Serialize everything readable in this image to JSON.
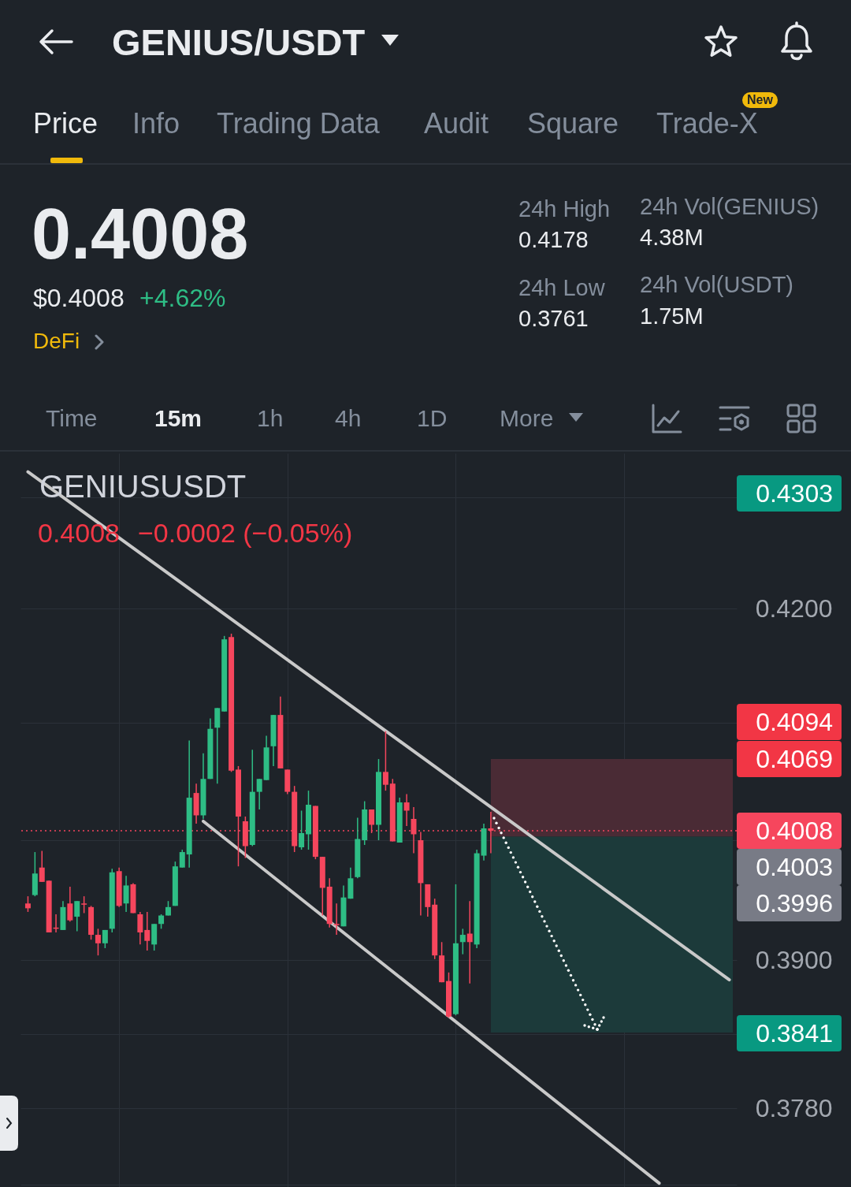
{
  "chart_data": {
    "type": "candlestick",
    "title": "GENIUS/USDT",
    "annotations": [
      "Price",
      "Info",
      "Trading Data",
      "Audit",
      "Square",
      "Trade-X",
      "New",
      "0.4008",
      "$0.4008",
      "+4.62%",
      "DeFi",
      "24h High",
      "0.4178",
      "24h Low",
      "0.3761",
      "24h Vol(GENIUS)",
      "4.38M",
      "24h Vol(USDT)",
      "1.75M",
      "Time",
      "15m",
      "1h",
      "4h",
      "1D",
      "More",
      "GENIUSUSDT",
      "0.4008",
      "−0.0002 (−0.05%)",
      "0.4303",
      "0.4094",
      "0.4069",
      "0.4003",
      "0.3996",
      "0.3841"
    ],
    "categories": [
      null,
      null,
      null,
      null,
      null,
      null,
      null,
      null,
      null,
      null,
      null,
      null,
      null,
      null,
      null,
      null,
      null,
      null,
      null,
      null,
      null,
      null,
      null,
      null,
      null,
      null,
      null,
      null,
      null,
      null,
      null,
      null,
      null,
      null,
      null,
      null,
      null,
      null,
      null,
      null,
      null,
      null,
      null,
      null,
      null,
      null,
      null,
      null,
      null,
      null,
      null,
      null,
      null,
      null,
      null,
      null,
      null,
      null,
      null,
      null,
      null,
      null,
      null,
      null,
      null,
      null,
      null,
      null,
      null,
      null,
      null,
      null,
      null,
      null,
      null,
      null,
      null,
      null,
      null,
      null,
      null,
      null,
      null,
      null,
      null,
      null,
      null,
      null,
      null,
      null,
      null,
      null,
      null,
      null,
      null,
      null,
      null,
      null,
      null,
      null,
      null
    ],
    "ohlc": [
      [
        0.3947,
        0.3953,
        0.394,
        0.3943
      ],
      [
        0.3954,
        0.399,
        0.3953,
        0.3972
      ],
      [
        0.3977,
        0.3991,
        0.3965,
        0.3965
      ],
      [
        0.3966,
        0.3966,
        0.3923,
        0.3923
      ],
      [
        0.3927,
        0.3938,
        0.3923,
        0.3926
      ],
      [
        0.3925,
        0.3949,
        0.3925,
        0.3944
      ],
      [
        0.3947,
        0.3961,
        0.3932,
        0.3933
      ],
      [
        0.3936,
        0.3949,
        0.3924,
        0.3949
      ],
      [
        0.3947,
        0.3953,
        0.3939,
        0.3946
      ],
      [
        0.3944,
        0.3945,
        0.3917,
        0.3921
      ],
      [
        0.3921,
        0.3926,
        0.3904,
        0.3914
      ],
      [
        0.3914,
        0.3925,
        0.391,
        0.3925
      ],
      [
        0.3926,
        0.3976,
        0.3923,
        0.3973
      ],
      [
        0.3974,
        0.3977,
        0.3944,
        0.3945
      ],
      [
        0.3947,
        0.397,
        0.394,
        0.3962
      ],
      [
        0.3963,
        0.3964,
        0.3939,
        0.3939
      ],
      [
        0.3938,
        0.394,
        0.3913,
        0.3923
      ],
      [
        0.3925,
        0.394,
        0.3908,
        0.3916
      ],
      [
        0.3913,
        0.393,
        0.3908,
        0.393
      ],
      [
        0.393,
        0.3938,
        0.3926,
        0.3937
      ],
      [
        0.3937,
        0.3949,
        0.3937,
        0.3944
      ],
      [
        0.3945,
        0.3982,
        0.3945,
        0.3978
      ],
      [
        0.3977,
        0.3992,
        0.3977,
        0.399
      ],
      [
        0.3988,
        0.4085,
        0.3977,
        0.4036
      ],
      [
        0.404,
        0.4048,
        0.4014,
        0.4021
      ],
      [
        0.4021,
        0.4074,
        0.4018,
        0.4052
      ],
      [
        0.4052,
        0.4104,
        0.4052,
        0.4095
      ],
      [
        0.4096,
        0.4113,
        0.4048,
        0.4113
      ],
      [
        0.411,
        0.4176,
        0.411,
        0.4173
      ],
      [
        0.4175,
        0.4178,
        0.4058,
        0.4059
      ],
      [
        0.406,
        0.4063,
        0.3978,
        0.402
      ],
      [
        0.4016,
        0.402,
        0.3985,
        0.3995
      ],
      [
        0.3996,
        0.4077,
        0.3995,
        0.4041
      ],
      [
        0.4041,
        0.4052,
        0.4026,
        0.4052
      ],
      [
        0.4051,
        0.4089,
        0.4051,
        0.4079
      ],
      [
        0.408,
        0.4107,
        0.4063,
        0.4107
      ],
      [
        0.4107,
        0.4123,
        0.4061,
        0.4061
      ],
      [
        0.406,
        0.406,
        0.4039,
        0.4041
      ],
      [
        0.4041,
        0.4046,
        0.399,
        0.3995
      ],
      [
        0.3994,
        0.4025,
        0.3992,
        0.4006
      ],
      [
        0.4005,
        0.4042,
        0.3992,
        0.403
      ],
      [
        0.4029,
        0.4029,
        0.3984,
        0.3986
      ],
      [
        0.3986,
        0.3986,
        0.3937,
        0.396
      ],
      [
        0.3961,
        0.3968,
        0.3927,
        0.393
      ],
      [
        0.393,
        0.3947,
        0.3921,
        0.3929
      ],
      [
        0.3928,
        0.3962,
        0.3928,
        0.3952
      ],
      [
        0.3951,
        0.3977,
        0.3951,
        0.3968
      ],
      [
        0.3969,
        0.4019,
        0.3968,
        0.4001
      ],
      [
        0.4,
        0.4033,
        0.3996,
        0.4026
      ],
      [
        0.4026,
        0.4026,
        0.4006,
        0.4013
      ],
      [
        0.4013,
        0.4069,
        0.4,
        0.4058
      ],
      [
        0.4058,
        0.4093,
        0.4042,
        0.4047
      ],
      [
        0.4048,
        0.4052,
        0.3999,
        0.3999
      ],
      [
        0.3998,
        0.4036,
        0.3998,
        0.4032
      ],
      [
        0.4032,
        0.4039,
        0.4012,
        0.4025
      ],
      [
        0.4018,
        0.4028,
        0.3989,
        0.4005
      ],
      [
        0.4,
        0.4007,
        0.3937,
        0.3964
      ],
      [
        0.3963,
        0.3963,
        0.3936,
        0.3944
      ],
      [
        0.3946,
        0.3951,
        0.3901,
        0.3904
      ],
      [
        0.3904,
        0.3915,
        0.3882,
        0.3882
      ],
      [
        0.3883,
        0.389,
        0.3853,
        0.3854
      ],
      [
        0.3856,
        0.3963,
        0.3855,
        0.3914
      ],
      [
        0.3915,
        0.3926,
        0.3905,
        0.3921
      ],
      [
        0.3922,
        0.3949,
        0.3881,
        0.3915
      ],
      [
        0.3913,
        0.3992,
        0.391,
        0.3989
      ],
      [
        0.3987,
        0.4014,
        0.3983,
        0.401
      ],
      [
        0.401,
        0.4024,
        0.3989,
        0.4008
      ],
      null,
      null,
      null,
      null,
      null,
      null,
      null,
      null,
      null,
      null,
      null,
      null,
      null,
      null,
      null,
      null,
      null,
      null,
      null,
      null,
      null,
      null,
      null,
      null,
      null,
      null,
      null,
      null,
      null,
      null,
      null,
      null,
      null,
      null
    ],
    "colors": [
      "#f6465d",
      "#2ebd85",
      "#f6465d",
      "#f6465d",
      "#f6465d",
      "#2ebd85",
      "#f6465d",
      "#2ebd85",
      "#f6465d",
      "#f6465d",
      "#f6465d",
      "#2ebd85",
      "#2ebd85",
      "#f6465d",
      "#2ebd85",
      "#f6465d",
      "#f6465d",
      "#f6465d",
      "#2ebd85",
      "#2ebd85",
      "#2ebd85",
      "#2ebd85",
      "#2ebd85",
      "#2ebd85",
      "#f6465d",
      "#2ebd85",
      "#2ebd85",
      "#2ebd85",
      "#2ebd85",
      "#f6465d",
      "#f6465d",
      "#f6465d",
      "#2ebd85",
      "#2ebd85",
      "#2ebd85",
      "#2ebd85",
      "#f6465d",
      "#f6465d",
      "#f6465d",
      "#2ebd85",
      "#2ebd85",
      "#f6465d",
      "#f6465d",
      "#f6465d",
      "#f6465d",
      "#2ebd85",
      "#2ebd85",
      "#2ebd85",
      "#2ebd85",
      "#f6465d",
      "#2ebd85",
      "#f6465d",
      "#f6465d",
      "#2ebd85",
      "#f6465d",
      "#f6465d",
      "#f6465d",
      "#f6465d",
      "#f6465d",
      "#f6465d",
      "#f6465d",
      "#2ebd85",
      "#2ebd85",
      "#f6465d",
      "#2ebd85",
      "#2ebd85",
      "#f6465d",
      null,
      null,
      null,
      null,
      null,
      null,
      null,
      null,
      null,
      null,
      null,
      null,
      null,
      null,
      null,
      null,
      null,
      null,
      null,
      null,
      null,
      null,
      null,
      null,
      null,
      null,
      null,
      null,
      null,
      null,
      null,
      null,
      null,
      null
    ],
    "series": [
      {
        "type": "line",
        "color": "#c9c9c9",
        "values": [
          0.4323,
          null,
          null,
          null,
          null,
          null,
          null,
          null,
          null,
          null,
          null,
          null,
          null,
          null,
          null,
          null,
          null,
          null,
          null,
          null,
          null,
          null,
          null,
          null,
          null,
          null,
          null,
          null,
          null,
          null,
          null,
          null,
          null,
          null,
          null,
          null,
          null,
          null,
          null,
          null,
          null,
          null,
          null,
          null,
          null,
          null,
          null,
          null,
          null,
          null,
          null,
          null,
          null,
          null,
          null,
          null,
          null,
          null,
          null,
          null,
          null,
          null,
          null,
          null,
          null,
          null,
          null,
          null,
          null,
          null,
          null,
          null,
          null,
          null,
          null,
          null,
          null,
          null,
          null,
          null,
          null,
          null,
          null,
          null,
          null,
          null,
          null,
          null,
          null,
          null,
          null,
          null,
          null,
          null,
          null,
          null,
          null,
          null,
          null,
          null,
          0.3884
        ]
      },
      {
        "type": "line",
        "color": "#c9c9c9",
        "values": [
          null,
          null,
          null,
          null,
          null,
          null,
          null,
          null,
          null,
          null,
          null,
          null,
          null,
          null,
          null,
          null,
          null,
          null,
          null,
          null,
          null,
          null,
          null,
          null,
          null,
          0.4016,
          null,
          null,
          null,
          null,
          null,
          null,
          null,
          null,
          null,
          null,
          null,
          null,
          null,
          null,
          null,
          null,
          null,
          null,
          null,
          null,
          null,
          null,
          null,
          null,
          null,
          null,
          null,
          null,
          null,
          null,
          null,
          null,
          null,
          null,
          null,
          null,
          null,
          null,
          null,
          null,
          null,
          null,
          null,
          null,
          null,
          null,
          null,
          null,
          null,
          null,
          null,
          null,
          null,
          null,
          null,
          null,
          null,
          null,
          null,
          null,
          null,
          null,
          null,
          null,
          0.3721,
          null,
          null,
          null,
          null,
          null,
          null,
          null,
          null,
          null,
          null
        ]
      }
    ],
    "log": true,
    "ylim": [
      0.3718,
      0.434
    ],
    "yticks": [
      {
        "value": 0.43,
        "label": null
      },
      {
        "value": 0.42,
        "label": "0.4200"
      },
      {
        "value": 0.41,
        "label": null
      },
      {
        "value": 0.4,
        "label": null
      },
      {
        "value": 0.39,
        "label": "0.3900"
      },
      {
        "value": 0.384,
        "label": null
      },
      {
        "value": 0.378,
        "label": "0.3780"
      },
      {
        "value": 0.372,
        "label": null
      }
    ],
    "grid": true,
    "tick_labels": "y",
    "ref_lines": [
      {
        "axis": "y",
        "value": 0.4008,
        "label": "0.4008",
        "color": "#f6465d",
        "line_style": "dotted"
      }
    ],
    "bands": [
      {
        "axis": "y",
        "from": 0.4003,
        "to": 0.4069,
        "color": "#4a2b35"
      },
      {
        "axis": "y",
        "from": 0.3841,
        "to": 0.4003,
        "color": "#1c3a3a"
      }
    ]
  }
}
